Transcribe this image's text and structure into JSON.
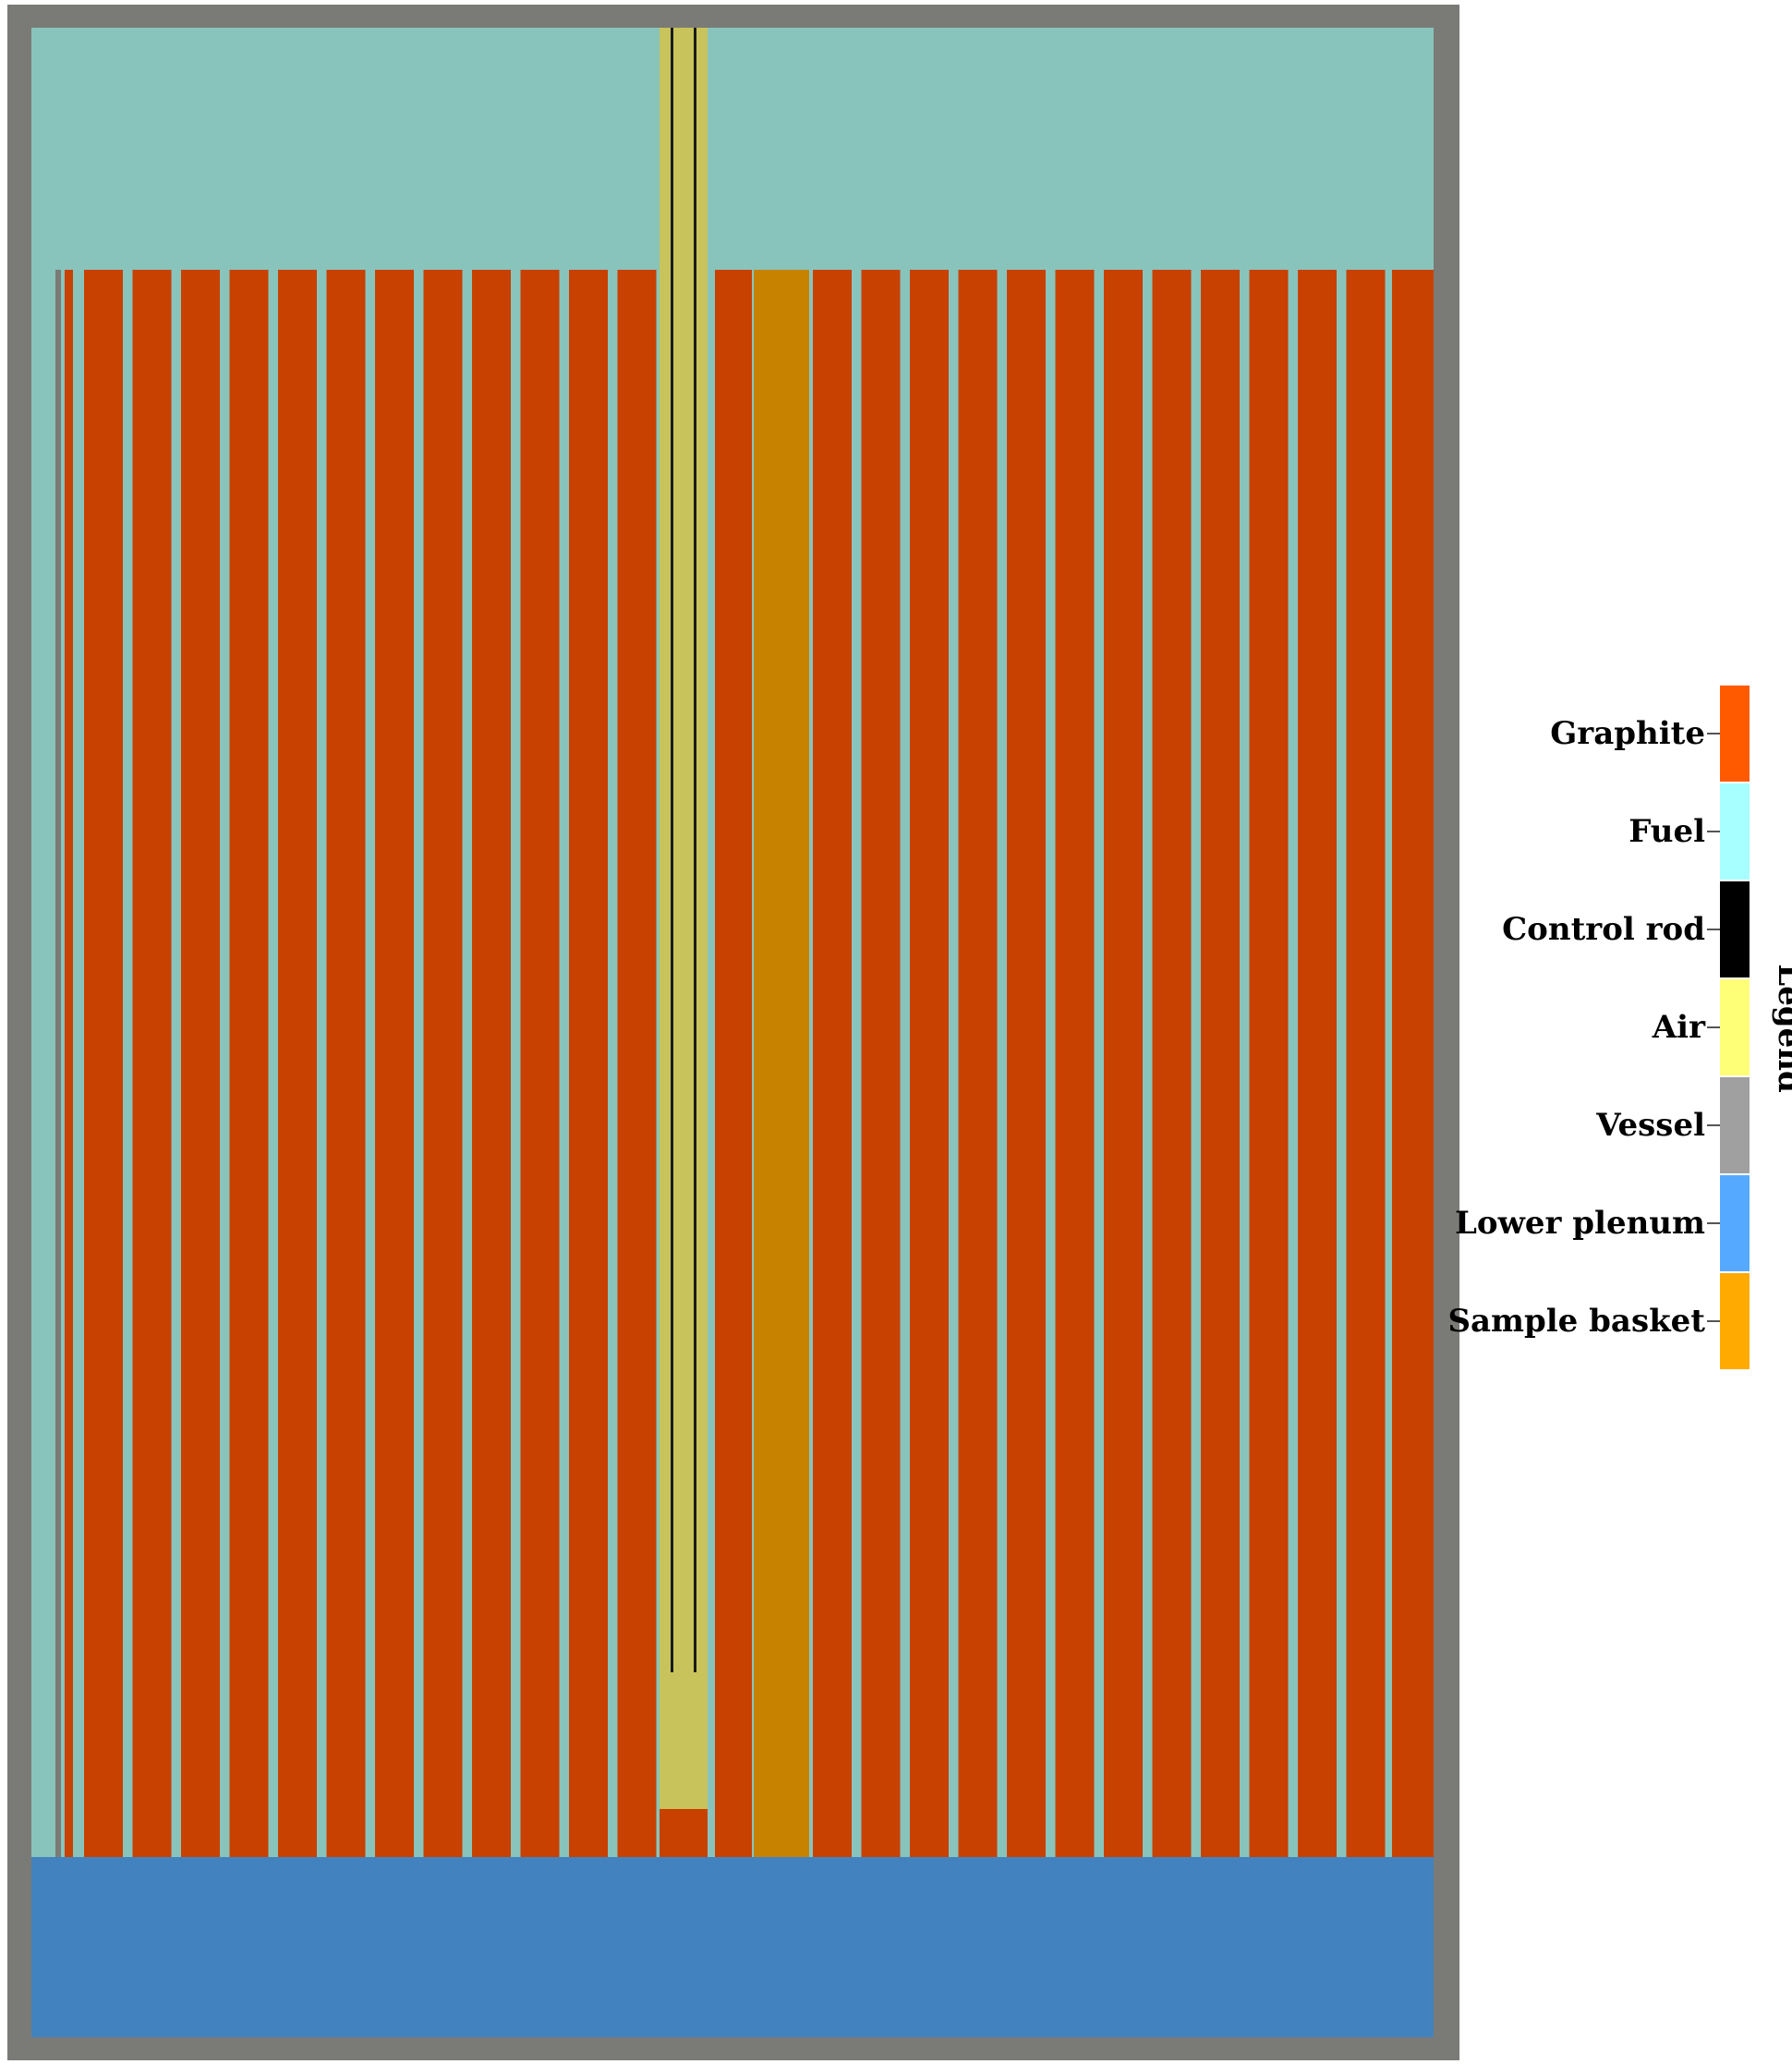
{
  "legend": {
    "title": "Legend",
    "items": [
      {
        "label": "Graphite",
        "color": "#ff5a00"
      },
      {
        "label": "Fuel",
        "color": "#a8ffff"
      },
      {
        "label": "Control rod",
        "color": "#000000"
      },
      {
        "label": "Air",
        "color": "#ffff77"
      },
      {
        "label": "Vessel",
        "color": "#a0a0a0"
      },
      {
        "label": "Lower plenum",
        "color": "#55aaff"
      },
      {
        "label": "Sample basket",
        "color": "#ffaa00"
      }
    ]
  },
  "render_colors": {
    "vessel": "#7a7a76",
    "fuel": "#88c4bc",
    "graphite": "#c84100",
    "lower_plenum": "#4283bf",
    "sample_basket": "#c78200",
    "air": "#c8c35a",
    "control_rod": "#1a1a1a"
  }
}
